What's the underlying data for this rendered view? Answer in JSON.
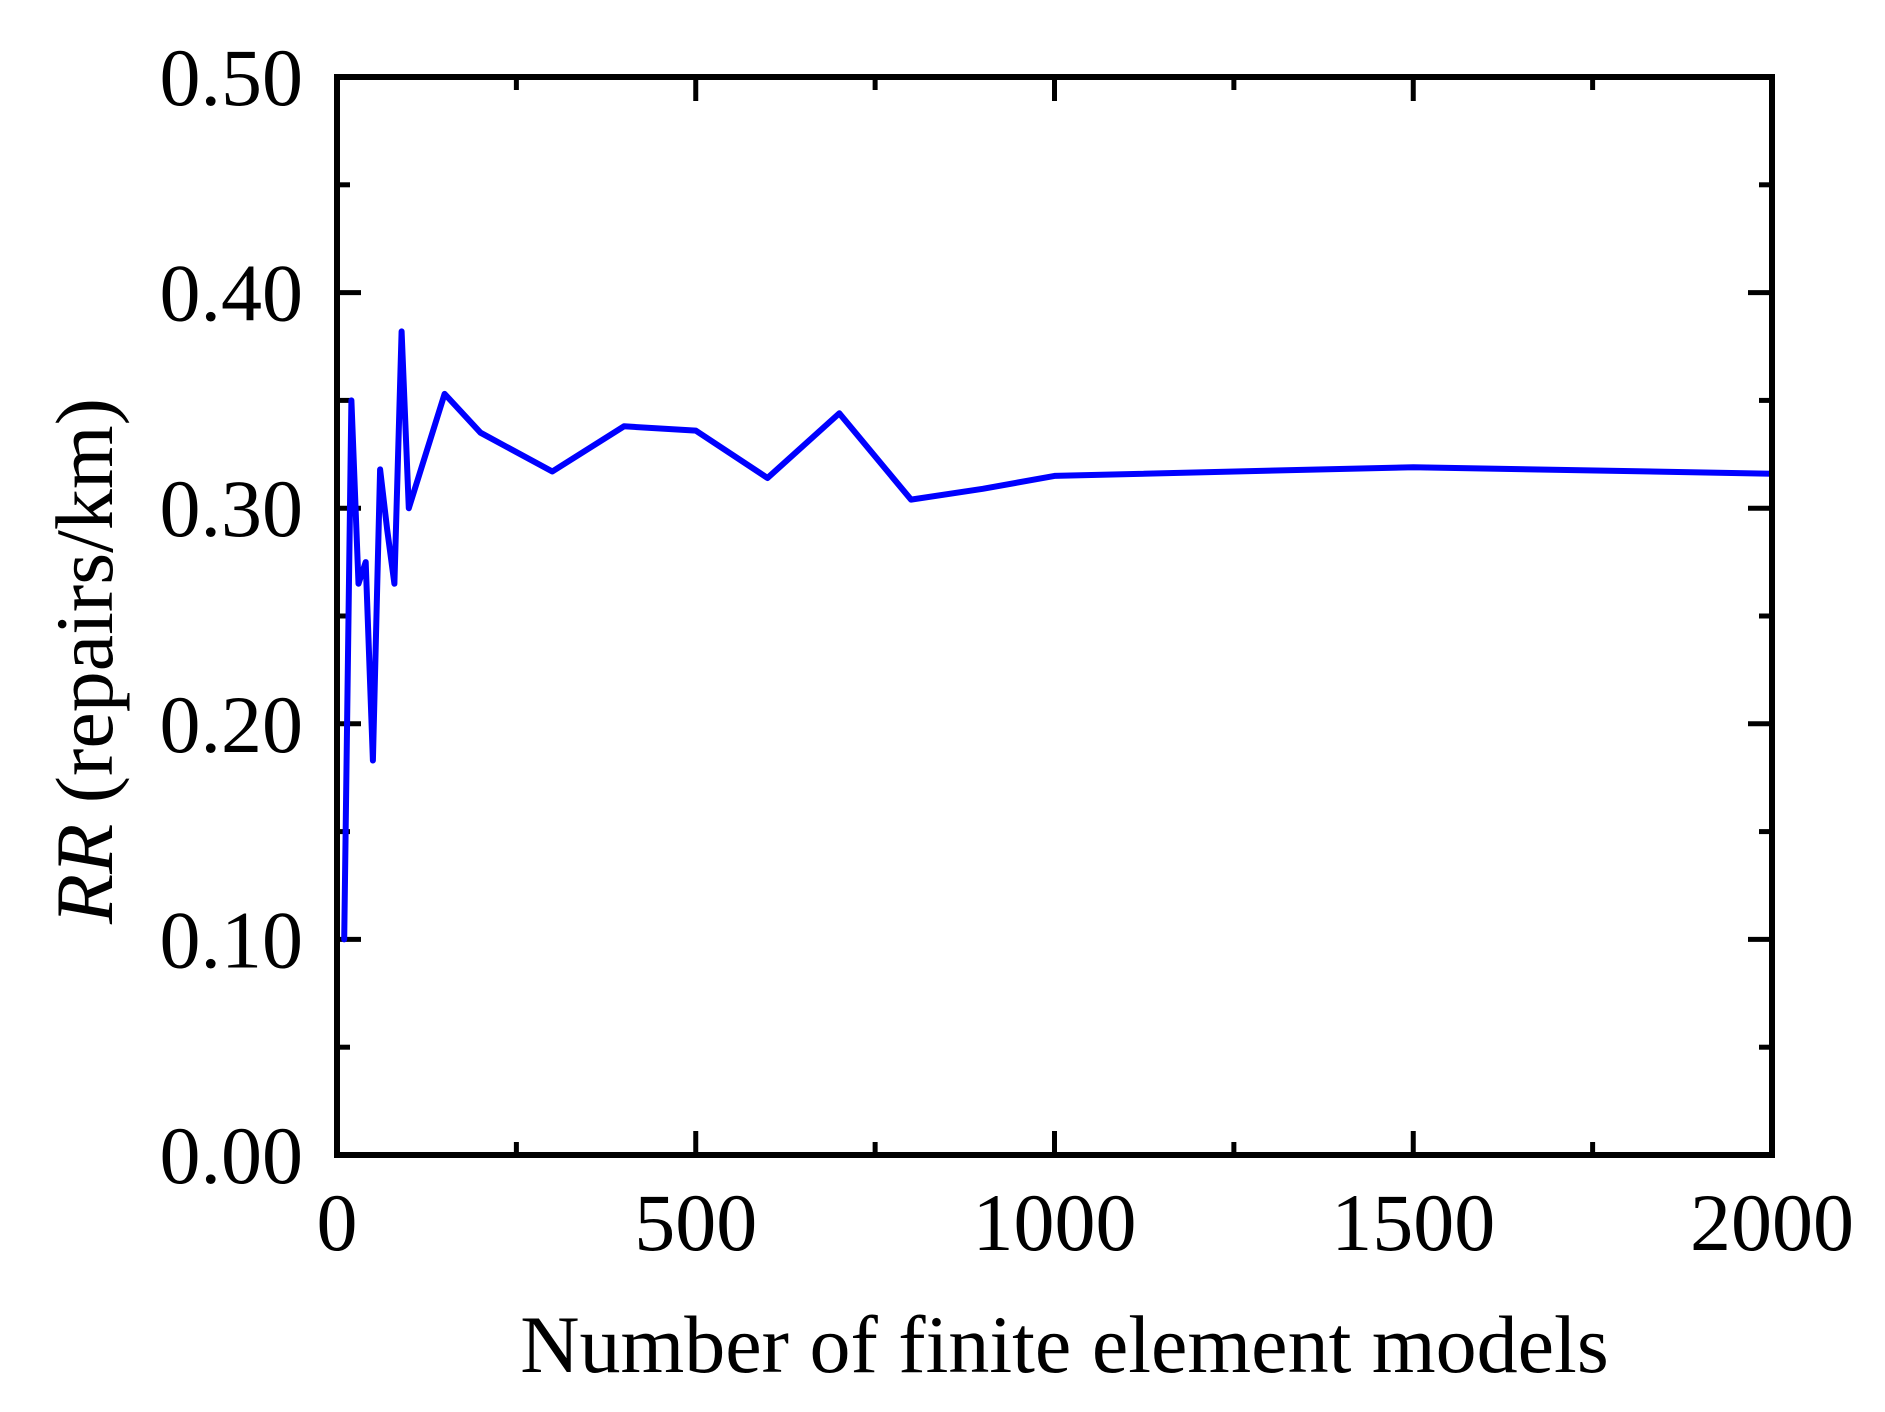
{
  "chart_data": {
    "type": "line",
    "title": "",
    "xlabel": "Number of finite element models",
    "ylabel_italic": "RR",
    "ylabel_rest": " (repairs/km)",
    "xlim": [
      0,
      2000
    ],
    "ylim": [
      0.0,
      0.5
    ],
    "x_ticks": [
      0,
      500,
      1000,
      1500,
      2000
    ],
    "x_tick_labels": [
      "0",
      "500",
      "1000",
      "1500",
      "2000"
    ],
    "y_ticks": [
      0.0,
      0.1,
      0.2,
      0.3,
      0.4,
      0.5
    ],
    "y_tick_labels": [
      "0.00",
      "0.10",
      "0.20",
      "0.30",
      "0.40",
      "0.50"
    ],
    "grid": false,
    "line_color": "#0000ff",
    "series": [
      {
        "x": [
          10,
          20,
          30,
          40,
          50,
          60,
          70,
          80,
          90,
          100,
          150,
          200,
          300,
          400,
          500,
          600,
          700,
          800,
          900,
          1000,
          1500,
          2000
        ],
        "y": [
          0.1,
          0.35,
          0.265,
          0.275,
          0.183,
          0.318,
          0.29,
          0.265,
          0.382,
          0.3,
          0.353,
          0.335,
          0.317,
          0.338,
          0.336,
          0.314,
          0.344,
          0.304,
          0.309,
          0.315,
          0.319,
          0.316
        ]
      }
    ]
  }
}
